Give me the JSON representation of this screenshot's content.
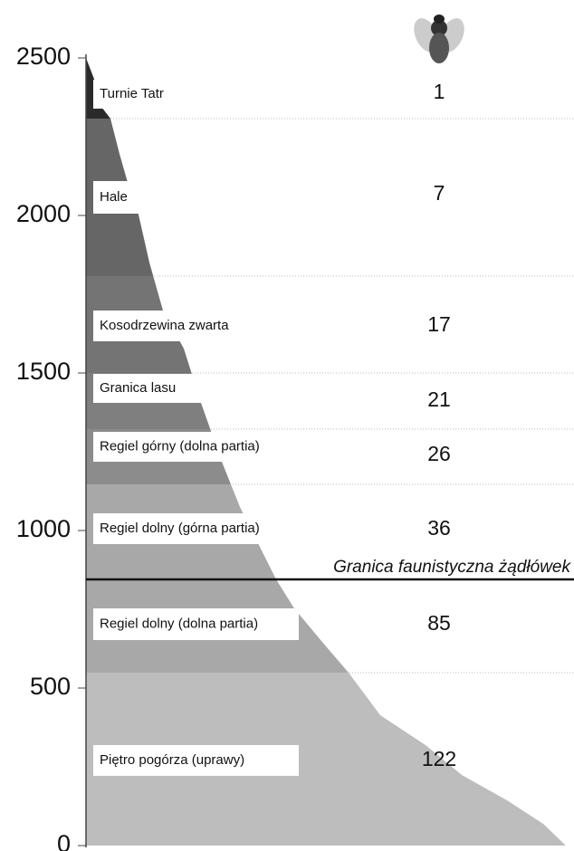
{
  "axis": {
    "ticks": [
      2500,
      2000,
      1500,
      1000,
      500,
      0
    ]
  },
  "zones": [
    {
      "label": "Turnie Tatr",
      "count": 1
    },
    {
      "label": "Hale",
      "count": 7
    },
    {
      "label": "Kosodrzewina zwarta",
      "count": 17
    },
    {
      "label": "Granica lasu",
      "count": 21
    },
    {
      "label": "Regiel górny (dolna partia)",
      "count": 26
    },
    {
      "label": "Regiel dolny (górna partia)",
      "count": 36
    },
    {
      "label": "Regiel dolny (dolna partia)",
      "count": 85
    },
    {
      "label": "Piętro pogórza (uprawy)",
      "count": 122
    }
  ],
  "boundary_label": "Granica faunistyczna żądłówek"
}
